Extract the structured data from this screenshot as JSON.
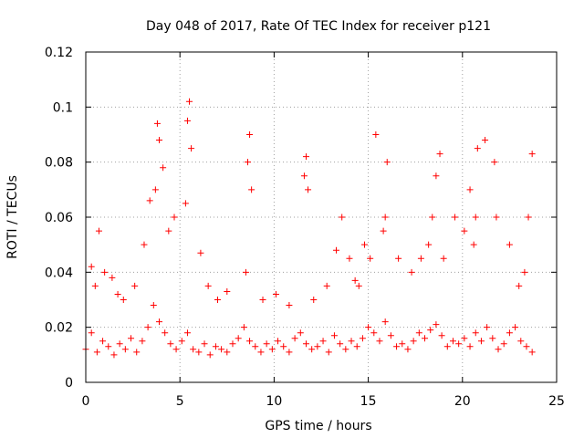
{
  "chart_data": {
    "type": "scatter",
    "title": "Day 048 of 2017, Rate Of TEC Index for receiver p121",
    "xlabel": "GPS time / hours",
    "ylabel": "ROTI / TECUs",
    "xlim": [
      0,
      25
    ],
    "ylim": [
      0,
      0.12
    ],
    "x_ticks": [
      0,
      5,
      10,
      15,
      20,
      25
    ],
    "x_tick_labels": [
      "0",
      "5",
      "10",
      "15",
      "20",
      "25"
    ],
    "y_ticks": [
      0,
      0.02,
      0.04,
      0.06,
      0.08,
      0.1,
      0.12
    ],
    "y_tick_labels": [
      "0",
      "0.02",
      "0.04",
      "0.06",
      "0.08",
      "0.1",
      "0.12"
    ],
    "grid": true,
    "marker": "+",
    "series": [
      {
        "name": "ROTI",
        "color": "#ff0000",
        "x": [
          0.0,
          0.3,
          0.6,
          0.9,
          1.2,
          1.5,
          1.8,
          2.1,
          2.4,
          2.7,
          3.0,
          3.3,
          3.6,
          3.9,
          4.2,
          4.5,
          4.8,
          5.1,
          5.4,
          5.7,
          6.0,
          6.3,
          6.6,
          6.9,
          7.2,
          7.5,
          7.8,
          8.1,
          8.4,
          8.7,
          9.0,
          9.3,
          9.6,
          9.9,
          10.2,
          10.5,
          10.8,
          11.1,
          11.4,
          11.7,
          12.0,
          12.3,
          12.6,
          12.9,
          13.2,
          13.5,
          13.8,
          14.1,
          14.4,
          14.7,
          15.0,
          15.3,
          15.6,
          15.9,
          16.2,
          16.5,
          16.8,
          17.1,
          17.4,
          17.7,
          18.0,
          18.3,
          18.6,
          18.9,
          19.2,
          19.5,
          19.8,
          20.1,
          20.4,
          20.7,
          21.0,
          21.3,
          21.6,
          21.9,
          22.2,
          22.5,
          22.8,
          23.1,
          23.4,
          23.7,
          0.3,
          0.5,
          0.7,
          1.0,
          1.4,
          1.7,
          2.0,
          2.6,
          3.1,
          3.4,
          3.7,
          3.8,
          3.9,
          4.1,
          4.4,
          4.7,
          5.3,
          5.4,
          5.5,
          5.6,
          6.1,
          6.5,
          7.0,
          7.5,
          8.5,
          8.6,
          8.7,
          8.8,
          9.4,
          10.1,
          10.8,
          11.6,
          11.7,
          11.8,
          12.1,
          12.8,
          13.3,
          13.6,
          14.0,
          14.3,
          14.5,
          14.8,
          15.1,
          15.4,
          15.8,
          15.9,
          16.0,
          16.6,
          17.3,
          17.8,
          18.2,
          18.4,
          18.6,
          18.8,
          19.0,
          19.6,
          20.1,
          20.4,
          20.6,
          20.7,
          20.8,
          21.2,
          21.7,
          21.8,
          22.5,
          23.0,
          23.3,
          23.5,
          23.7
        ],
        "y": [
          0.012,
          0.018,
          0.011,
          0.015,
          0.013,
          0.01,
          0.014,
          0.012,
          0.016,
          0.011,
          0.015,
          0.02,
          0.028,
          0.022,
          0.018,
          0.014,
          0.012,
          0.015,
          0.018,
          0.012,
          0.011,
          0.014,
          0.01,
          0.013,
          0.012,
          0.011,
          0.014,
          0.016,
          0.02,
          0.015,
          0.013,
          0.011,
          0.014,
          0.012,
          0.015,
          0.013,
          0.011,
          0.016,
          0.018,
          0.014,
          0.012,
          0.013,
          0.015,
          0.011,
          0.017,
          0.014,
          0.012,
          0.015,
          0.013,
          0.016,
          0.02,
          0.018,
          0.015,
          0.022,
          0.017,
          0.013,
          0.014,
          0.012,
          0.015,
          0.018,
          0.016,
          0.019,
          0.021,
          0.017,
          0.013,
          0.015,
          0.014,
          0.016,
          0.013,
          0.018,
          0.015,
          0.02,
          0.016,
          0.012,
          0.014,
          0.018,
          0.02,
          0.015,
          0.013,
          0.011,
          0.042,
          0.035,
          0.055,
          0.04,
          0.038,
          0.032,
          0.03,
          0.035,
          0.05,
          0.066,
          0.07,
          0.094,
          0.088,
          0.078,
          0.055,
          0.06,
          0.065,
          0.095,
          0.102,
          0.085,
          0.047,
          0.035,
          0.03,
          0.033,
          0.04,
          0.08,
          0.09,
          0.07,
          0.03,
          0.032,
          0.028,
          0.075,
          0.082,
          0.07,
          0.03,
          0.035,
          0.048,
          0.06,
          0.045,
          0.037,
          0.035,
          0.05,
          0.045,
          0.09,
          0.055,
          0.06,
          0.08,
          0.045,
          0.04,
          0.045,
          0.05,
          0.06,
          0.075,
          0.083,
          0.045,
          0.06,
          0.055,
          0.07,
          0.05,
          0.06,
          0.085,
          0.088,
          0.08,
          0.06,
          0.05,
          0.035,
          0.04,
          0.06,
          0.083
        ]
      }
    ]
  }
}
